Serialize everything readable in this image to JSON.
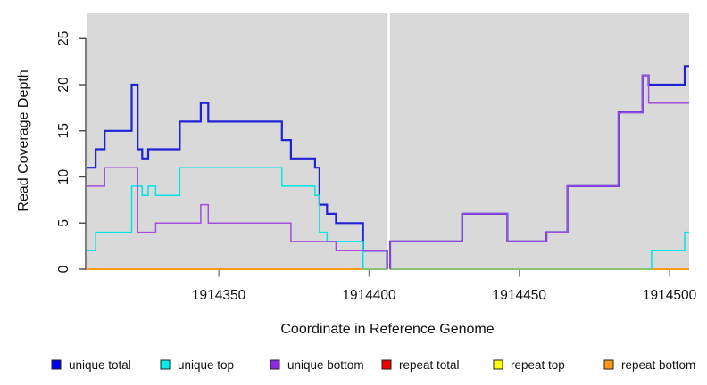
{
  "chart_data": {
    "type": "line",
    "subtype": "step-coverage-plot",
    "title": "",
    "xlabel": "Coordinate in Reference Genome",
    "ylabel": "Read Coverage Depth",
    "x_ticks": [
      {
        "value": 1914350,
        "label": "1914350"
      },
      {
        "value": 1914400,
        "label": "1914400"
      },
      {
        "value": 1914450,
        "label": "1914450"
      },
      {
        "value": 1914500,
        "label": "1914500"
      }
    ],
    "y_ticks": [
      {
        "value": 0,
        "label": "0"
      },
      {
        "value": 5,
        "label": "5"
      },
      {
        "value": 10,
        "label": "10"
      },
      {
        "value": 15,
        "label": "15"
      },
      {
        "value": 20,
        "label": "20"
      },
      {
        "value": 25,
        "label": "25"
      }
    ],
    "x_range": [
      1914306,
      1914506.5
    ],
    "y_range": [
      0,
      27.8
    ],
    "grid": false,
    "plot_bg": "#d9d9d9",
    "gap_region": {
      "x_start": 1914406.2,
      "x_end": 1914406.95,
      "color": "#ffffff"
    },
    "series": [
      {
        "name": "unique total",
        "color": "#2121d6",
        "segments": [
          [
            [
              1914306,
              11
            ],
            [
              1914309,
              13
            ],
            [
              1914312,
              15
            ],
            [
              1914321,
              20
            ],
            [
              1914323,
              13
            ],
            [
              1914324.5,
              12
            ],
            [
              1914326.5,
              13
            ],
            [
              1914337,
              16
            ],
            [
              1914344,
              18
            ],
            [
              1914346.5,
              16
            ],
            [
              1914371,
              14
            ],
            [
              1914374,
              12
            ],
            [
              1914382,
              11
            ],
            [
              1914383.5,
              7
            ],
            [
              1914386,
              6
            ],
            [
              1914389,
              5
            ],
            [
              1914398,
              2
            ],
            [
              1914406,
              2
            ],
            [
              1914406,
              0
            ]
          ],
          [
            [
              1914407,
              0
            ],
            [
              1914407,
              3
            ],
            [
              1914431,
              6
            ],
            [
              1914446,
              3
            ],
            [
              1914459,
              4
            ],
            [
              1914466,
              9
            ],
            [
              1914483,
              17
            ],
            [
              1914491,
              21
            ],
            [
              1914493,
              20
            ],
            [
              1914505,
              22
            ],
            [
              1914506.5,
              22
            ]
          ]
        ]
      },
      {
        "name": "unique top",
        "color": "#00e6e6",
        "segments": [
          [
            [
              1914306,
              2
            ],
            [
              1914309,
              4
            ],
            [
              1914321,
              9
            ],
            [
              1914324.5,
              8
            ],
            [
              1914326.5,
              9
            ],
            [
              1914329,
              8
            ],
            [
              1914337,
              11
            ],
            [
              1914371,
              9
            ],
            [
              1914382,
              8
            ],
            [
              1914383.5,
              4
            ],
            [
              1914386,
              3
            ],
            [
              1914398,
              3
            ],
            [
              1914398,
              0
            ]
          ],
          [
            [
              1914494,
              0
            ],
            [
              1914494,
              2
            ],
            [
              1914505,
              4
            ],
            [
              1914506.5,
              4
            ]
          ]
        ]
      },
      {
        "name": "unique bottom",
        "color": "#a24fdd",
        "segments": [
          [
            [
              1914306,
              9
            ],
            [
              1914312,
              11
            ],
            [
              1914323,
              4
            ],
            [
              1914329,
              5
            ],
            [
              1914344,
              7
            ],
            [
              1914346.5,
              5
            ],
            [
              1914374,
              3
            ],
            [
              1914389,
              2
            ],
            [
              1914406,
              2
            ],
            [
              1914406,
              0
            ]
          ],
          [
            [
              1914407,
              0
            ],
            [
              1914407,
              3
            ],
            [
              1914431,
              6
            ],
            [
              1914446,
              3
            ],
            [
              1914459,
              4
            ],
            [
              1914466,
              9
            ],
            [
              1914483,
              17
            ],
            [
              1914491,
              21
            ],
            [
              1914493,
              18
            ],
            [
              1914506.5,
              18
            ]
          ]
        ]
      },
      {
        "name": "repeat total",
        "color": "#dd0000",
        "segments": [
          [
            [
              1914306,
              0
            ],
            [
              1914506.5,
              0
            ]
          ]
        ]
      },
      {
        "name": "repeat top",
        "color": "#ffff00",
        "segments": [
          [
            [
              1914306,
              0
            ],
            [
              1914506.5,
              0
            ]
          ]
        ]
      },
      {
        "name": "repeat bottom",
        "color": "#ff9515",
        "segments": [
          [
            [
              1914306,
              0
            ],
            [
              1914506.5,
              0
            ]
          ]
        ]
      }
    ],
    "baseline_overlay": {
      "note": "light-green tint where unique-top lies at zero over the orange baseline",
      "color": "#7cc87c",
      "segments": [
        [
          [
            1914398,
            0
          ],
          [
            1914406.2,
            0
          ]
        ],
        [
          [
            1914407,
            0
          ],
          [
            1914494,
            0
          ]
        ]
      ]
    },
    "legend": [
      {
        "label": "unique total",
        "swatch": "#0000ee"
      },
      {
        "label": "unique top",
        "swatch": "#00eeee"
      },
      {
        "label": "unique bottom",
        "swatch": "#8a2be2"
      },
      {
        "label": "repeat total",
        "swatch": "#ee0000"
      },
      {
        "label": "repeat top",
        "swatch": "#ffff00"
      },
      {
        "label": "repeat bottom",
        "swatch": "#ff9812"
      }
    ]
  }
}
